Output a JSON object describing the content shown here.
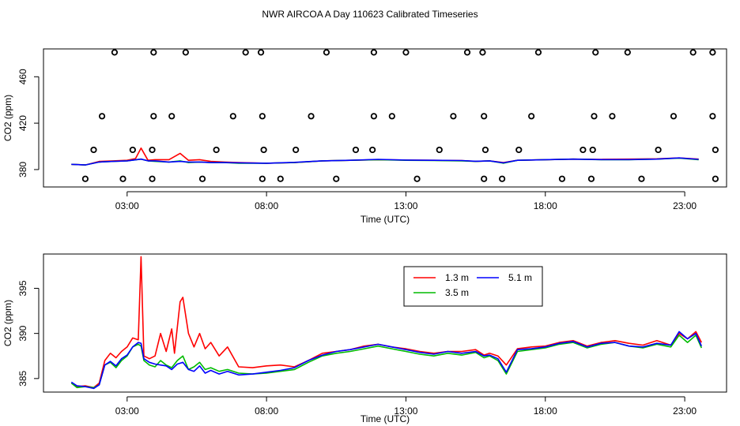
{
  "title": "NWR AIRCOA A  Day 110623  Calibrated Timeseries",
  "colors": {
    "s13": "#ff0000",
    "s35": "#00bb00",
    "s51": "#0000ff",
    "axis": "#000000"
  },
  "chart_data": [
    {
      "type": "scatter+line",
      "panel": "top",
      "xlabel": "Time (UTC)",
      "ylabel": "CO2 (ppm)",
      "xlim": [
        0,
        24.5
      ],
      "ylim": [
        365,
        484
      ],
      "x_ticks": [
        3,
        8,
        13,
        18,
        23
      ],
      "x_tick_labels": [
        "03:00",
        "08:00",
        "13:00",
        "18:00",
        "23:00"
      ],
      "y_ticks": [
        380,
        420,
        460
      ],
      "y_tick_labels": [
        "380",
        "420",
        "460"
      ],
      "marker_series": [
        {
          "name": "marker-372",
          "y": 372,
          "x": [
            1.5,
            2.85,
            3.9,
            5.7,
            7.85,
            8.5,
            10.5,
            13.4,
            15.8,
            16.45,
            18.6,
            19.65,
            21.45,
            24.1
          ]
        },
        {
          "name": "marker-397",
          "y": 397,
          "x": [
            1.8,
            3.2,
            3.9,
            6.2,
            7.9,
            9.05,
            11.2,
            11.8,
            14.2,
            15.85,
            17.05,
            19.35,
            19.7,
            22.05,
            24.1
          ]
        },
        {
          "name": "marker-426",
          "y": 426,
          "x": [
            2.1,
            3.95,
            4.6,
            6.8,
            7.85,
            9.6,
            11.85,
            12.5,
            14.7,
            15.8,
            17.5,
            19.75,
            20.4,
            22.6,
            24.0
          ]
        },
        {
          "name": "marker-481",
          "y": 481,
          "x": [
            2.55,
            3.95,
            5.1,
            7.25,
            7.8,
            10.15,
            11.85,
            13.0,
            15.2,
            15.75,
            17.75,
            19.8,
            20.95,
            23.3,
            24.0
          ]
        }
      ],
      "series": [
        {
          "name": "1.3 m",
          "color": "#ff0000",
          "x": [
            1.0,
            1.5,
            2.0,
            2.5,
            3.0,
            3.3,
            3.5,
            3.75,
            4.0,
            4.5,
            4.9,
            5.2,
            5.6,
            6.0,
            6.5,
            7.0,
            8.0,
            9.0,
            10.0,
            11.0,
            12.0,
            13.0,
            14.0,
            15.0,
            15.5,
            16.0,
            16.5,
            17.0,
            18.0,
            19.0,
            20.0,
            21.0,
            22.0,
            22.8,
            23.5
          ],
          "values": [
            384.5,
            384.0,
            387.0,
            387.5,
            388.0,
            389.5,
            398.5,
            388.0,
            388.5,
            388.5,
            394.0,
            388.0,
            388.5,
            387.0,
            386.5,
            386.0,
            385.5,
            386.0,
            387.5,
            388.0,
            388.5,
            388.2,
            388.0,
            387.8,
            387.0,
            387.5,
            386.0,
            388.0,
            388.5,
            389.0,
            388.8,
            389.0,
            389.3,
            390.0,
            389.0
          ]
        },
        {
          "name": "3.5 m",
          "color": "#00bb00",
          "x": [
            1.0,
            1.5,
            2.0,
            2.5,
            3.0,
            3.5,
            3.75,
            4.0,
            4.5,
            4.9,
            5.2,
            5.6,
            6.0,
            6.5,
            7.0,
            8.0,
            9.0,
            10.0,
            11.0,
            12.0,
            13.0,
            14.0,
            15.0,
            15.5,
            16.0,
            16.5,
            17.0,
            18.0,
            19.0,
            20.0,
            21.0,
            22.0,
            22.8,
            23.5
          ],
          "values": [
            384.5,
            384.0,
            386.5,
            387.0,
            387.5,
            389.0,
            387.5,
            387.0,
            386.5,
            387.5,
            386.0,
            386.5,
            386.0,
            386.0,
            385.5,
            385.5,
            386.0,
            387.5,
            388.0,
            388.5,
            388.0,
            387.8,
            387.5,
            387.0,
            387.5,
            385.5,
            388.0,
            388.5,
            389.0,
            388.5,
            388.5,
            389.0,
            389.8,
            388.5
          ]
        },
        {
          "name": "5.1 m",
          "color": "#0000ff",
          "x": [
            1.0,
            1.5,
            2.0,
            2.5,
            3.0,
            3.5,
            3.75,
            4.0,
            4.5,
            4.9,
            5.2,
            5.6,
            6.0,
            6.5,
            7.0,
            8.0,
            9.0,
            10.0,
            11.0,
            12.0,
            13.0,
            14.0,
            15.0,
            15.5,
            16.0,
            16.5,
            17.0,
            18.0,
            19.0,
            20.0,
            21.0,
            22.0,
            22.8,
            23.5
          ],
          "values": [
            384.5,
            384.0,
            386.5,
            387.0,
            387.5,
            389.0,
            387.5,
            387.5,
            386.5,
            387.0,
            386.5,
            386.5,
            386.0,
            386.0,
            385.8,
            385.5,
            386.2,
            387.5,
            388.0,
            388.8,
            388.2,
            388.0,
            387.8,
            387.2,
            387.5,
            385.8,
            388.0,
            388.5,
            389.0,
            388.6,
            388.6,
            389.0,
            390.0,
            388.8
          ]
        }
      ]
    },
    {
      "type": "line",
      "panel": "bottom",
      "xlabel": "Time (UTC)",
      "ylabel": "CO2 (ppm)",
      "xlim": [
        0,
        24.5
      ],
      "ylim": [
        383.5,
        398.8
      ],
      "x_ticks": [
        3,
        8,
        13,
        18,
        23
      ],
      "x_tick_labels": [
        "03:00",
        "08:00",
        "13:00",
        "18:00",
        "23:00"
      ],
      "y_ticks": [
        385,
        390,
        395
      ],
      "y_tick_labels": [
        "385",
        "390",
        "395"
      ],
      "legend": {
        "position": "top-center",
        "entries": [
          "1.3 m",
          "5.1 m",
          "3.5 m"
        ]
      },
      "series": [
        {
          "name": "1.3 m",
          "color": "#ff0000",
          "x": [
            1.0,
            1.2,
            1.5,
            1.8,
            2.0,
            2.2,
            2.4,
            2.6,
            2.8,
            3.0,
            3.2,
            3.4,
            3.5,
            3.6,
            3.8,
            4.0,
            4.2,
            4.4,
            4.6,
            4.7,
            4.9,
            5.0,
            5.2,
            5.4,
            5.6,
            5.8,
            6.0,
            6.3,
            6.6,
            7.0,
            7.5,
            8.0,
            8.5,
            9.0,
            9.5,
            10.0,
            10.5,
            11.0,
            11.5,
            12.0,
            12.5,
            13.0,
            13.5,
            14.0,
            14.5,
            15.0,
            15.5,
            15.8,
            16.0,
            16.3,
            16.6,
            17.0,
            17.5,
            18.0,
            18.5,
            19.0,
            19.5,
            20.0,
            20.5,
            21.0,
            21.5,
            22.0,
            22.5,
            22.8,
            23.1,
            23.4,
            23.6
          ],
          "values": [
            384.5,
            384.1,
            384.2,
            384.0,
            384.5,
            387.0,
            387.8,
            387.3,
            388.0,
            388.5,
            389.5,
            389.3,
            398.5,
            387.5,
            387.2,
            387.5,
            390.0,
            388.0,
            390.5,
            387.8,
            393.5,
            394.0,
            390.0,
            388.5,
            390.0,
            388.3,
            389.0,
            387.5,
            388.5,
            386.3,
            386.2,
            386.4,
            386.5,
            386.3,
            387.0,
            387.8,
            388.0,
            388.2,
            388.6,
            388.8,
            388.5,
            388.3,
            388.0,
            387.8,
            388.0,
            388.0,
            388.2,
            387.6,
            387.8,
            387.5,
            386.5,
            388.3,
            388.5,
            388.6,
            389.0,
            389.2,
            388.6,
            389.0,
            389.2,
            388.9,
            388.7,
            389.2,
            388.7,
            390.0,
            389.4,
            390.2,
            389.0
          ]
        },
        {
          "name": "3.5 m",
          "color": "#00bb00",
          "x": [
            1.0,
            1.2,
            1.5,
            1.8,
            2.0,
            2.2,
            2.4,
            2.6,
            2.8,
            3.0,
            3.2,
            3.4,
            3.5,
            3.6,
            3.8,
            4.0,
            4.2,
            4.4,
            4.6,
            4.8,
            5.0,
            5.2,
            5.4,
            5.6,
            5.8,
            6.0,
            6.3,
            6.6,
            7.0,
            7.5,
            8.0,
            8.5,
            9.0,
            9.5,
            10.0,
            10.5,
            11.0,
            11.5,
            12.0,
            12.5,
            13.0,
            13.5,
            14.0,
            14.5,
            15.0,
            15.5,
            15.8,
            16.0,
            16.3,
            16.6,
            17.0,
            17.5,
            18.0,
            18.5,
            19.0,
            19.5,
            20.0,
            20.5,
            21.0,
            21.5,
            22.0,
            22.5,
            22.8,
            23.1,
            23.4,
            23.6
          ],
          "values": [
            384.5,
            384.0,
            384.1,
            384.0,
            384.3,
            386.5,
            386.8,
            386.2,
            387.0,
            387.5,
            388.5,
            388.8,
            388.6,
            387.0,
            386.5,
            386.3,
            387.0,
            386.5,
            386.2,
            387.0,
            387.5,
            386.0,
            386.3,
            386.8,
            386.0,
            386.2,
            385.8,
            386.0,
            385.6,
            385.5,
            385.6,
            385.8,
            386.0,
            386.8,
            387.5,
            387.8,
            388.0,
            388.3,
            388.6,
            388.3,
            388.0,
            387.7,
            387.5,
            387.8,
            387.6,
            387.9,
            387.3,
            387.5,
            387.0,
            385.5,
            388.0,
            388.2,
            388.4,
            388.8,
            389.0,
            388.4,
            388.8,
            389.0,
            388.6,
            388.4,
            388.8,
            388.5,
            389.8,
            389.0,
            389.8,
            388.4
          ]
        },
        {
          "name": "5.1 m",
          "color": "#0000ff",
          "x": [
            1.0,
            1.2,
            1.5,
            1.8,
            2.0,
            2.2,
            2.4,
            2.6,
            2.8,
            3.0,
            3.2,
            3.4,
            3.5,
            3.6,
            3.8,
            4.0,
            4.2,
            4.4,
            4.6,
            4.8,
            5.0,
            5.2,
            5.4,
            5.6,
            5.8,
            6.0,
            6.3,
            6.6,
            7.0,
            7.5,
            8.0,
            8.5,
            9.0,
            9.5,
            10.0,
            10.5,
            11.0,
            11.5,
            12.0,
            12.5,
            13.0,
            13.5,
            14.0,
            14.5,
            15.0,
            15.5,
            15.8,
            16.0,
            16.3,
            16.6,
            17.0,
            17.5,
            18.0,
            18.5,
            19.0,
            19.5,
            20.0,
            20.5,
            21.0,
            21.5,
            22.0,
            22.5,
            22.8,
            23.1,
            23.4,
            23.6
          ],
          "values": [
            384.6,
            384.2,
            384.1,
            383.9,
            384.3,
            386.5,
            386.9,
            386.4,
            387.2,
            387.6,
            388.5,
            389.0,
            388.9,
            387.2,
            386.8,
            386.6,
            386.5,
            386.4,
            386.0,
            386.6,
            386.8,
            386.0,
            385.8,
            386.4,
            385.6,
            385.9,
            385.5,
            385.8,
            385.4,
            385.5,
            385.7,
            385.9,
            386.2,
            387.0,
            387.6,
            388.0,
            388.2,
            388.5,
            388.8,
            388.5,
            388.2,
            387.9,
            387.7,
            388.0,
            387.8,
            388.0,
            387.5,
            387.6,
            387.2,
            385.7,
            388.2,
            388.3,
            388.5,
            388.9,
            389.1,
            388.5,
            388.9,
            389.0,
            388.6,
            388.5,
            388.9,
            388.7,
            390.2,
            389.4,
            390.0,
            388.6
          ]
        }
      ]
    }
  ]
}
